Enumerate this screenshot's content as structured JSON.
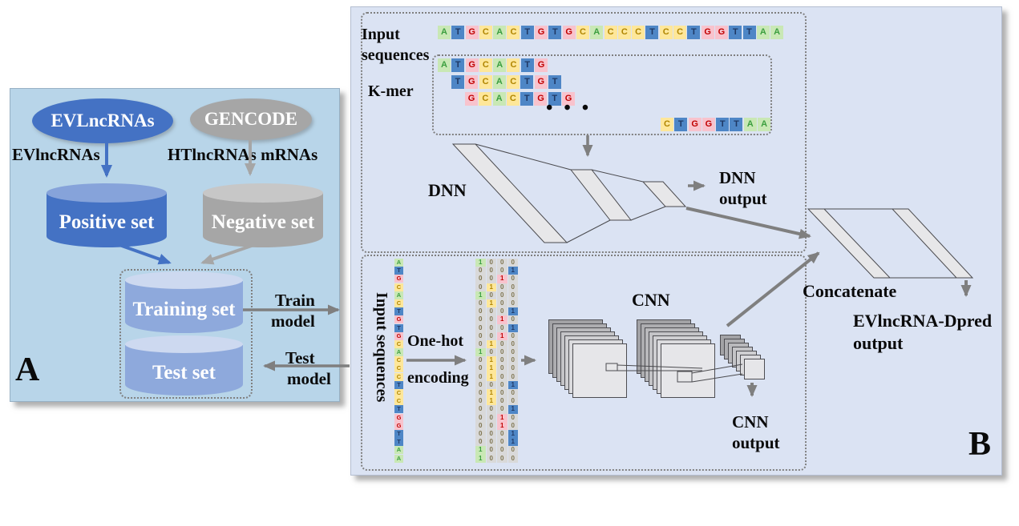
{
  "panel_a": {
    "corner_label": "A",
    "evlncrnas_ellipse": "EVLncRNAs",
    "gencode_ellipse": "GENCODE",
    "evlncrnas_flow_label": "EVlncRNAs",
    "gencode_flow_label": "HTlncRNAs mRNAs",
    "positive_set": "Positive set",
    "negative_set": "Negative set",
    "training_set": "Training set",
    "test_set": "Test set",
    "train_arrow": [
      "Train",
      "model"
    ],
    "test_arrow": [
      "Test",
      "model"
    ]
  },
  "panel_b": {
    "corner_label": "B",
    "input_sequences_label": [
      "Input",
      "sequences"
    ],
    "sequence": "ATGCACTGTGCACCCTCCTGGTTAA",
    "kmer_label": "K-mer",
    "kmer_rows": [
      "ATGCACTG",
      "TGCACTGT",
      "GCACTGTG"
    ],
    "kmer_ellipsis": "• • •",
    "kmer_last_row": "CTGGTTAA",
    "dnn_label": "DNN",
    "dnn_output": [
      "DNN",
      "output"
    ],
    "input_sequences_vertical": "Input sequences",
    "onehot_label": [
      "One-hot",
      "encoding"
    ],
    "cnn_label": "CNN",
    "cnn_output": [
      "CNN",
      "output"
    ],
    "concatenate_label": "Concatenate",
    "final_output": [
      "EVlncRNA-Dpred",
      "output"
    ]
  },
  "nucleotide_colors": {
    "A": {
      "bg": "#c9e8b5",
      "fg": "#3b9e3f"
    },
    "T": {
      "bg": "#4e86c6",
      "fg": "#1f3864"
    },
    "G": {
      "bg": "#f8c3cd",
      "fg": "#c00000"
    },
    "C": {
      "bg": "#fee79a",
      "fg": "#b08500"
    }
  },
  "onehot_columns": {
    "A": [
      1,
      0,
      0,
      0
    ],
    "C": [
      0,
      1,
      0,
      0
    ],
    "G": [
      0,
      0,
      1,
      0
    ],
    "T": [
      0,
      0,
      0,
      1
    ]
  },
  "colors": {
    "panel_a_bg": "#b8d5e9",
    "panel_b_bg": "#dbe3f3",
    "blue": "#4472c4",
    "blue_cyl_top": "#86a3da",
    "gray": "#a6a6a6",
    "gray_cyl_top": "#c7c7c7",
    "train_cyl_body": "#8ea9dc",
    "train_cyl_top": "#cdd9f0",
    "arrow_gray": "#7f7f7f",
    "dotted_border": "#7f7f7f",
    "shape_fill": "#e7e7e9",
    "shape_stroke": "#4a4a4e",
    "matrix_bg": "#d9d9d9",
    "matrix_zero_fg": "#7f7550",
    "text": "#0a0a0a"
  }
}
